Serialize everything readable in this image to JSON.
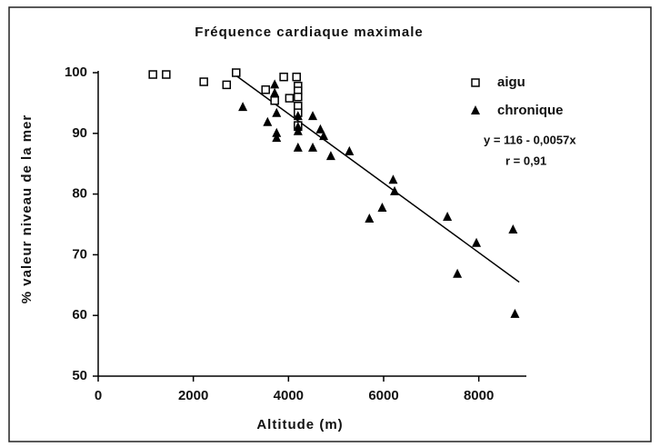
{
  "chart_data": {
    "type": "scatter",
    "title": "Fréquence cardiaque maximale",
    "x_label": "Altitude (m)",
    "y_label": "% valeur niveau de la mer",
    "xlim": [
      0,
      9000
    ],
    "ylim": [
      50,
      100
    ],
    "xticks": [
      0,
      2000,
      4000,
      6000,
      8000
    ],
    "yticks": [
      50,
      60,
      70,
      80,
      90,
      100
    ],
    "series": [
      {
        "name": "aigu",
        "marker": "square",
        "color": "#000000",
        "x": [
          1150,
          1430,
          2220,
          2700,
          2900,
          3520,
          3710,
          3900,
          4020,
          4170,
          4200,
          4200,
          4200,
          4200,
          4200,
          4200
        ],
        "values": [
          99.7,
          99.7,
          98.5,
          98,
          100,
          97.2,
          95.4,
          99.3,
          95.8,
          99.3,
          97.8,
          97,
          96,
          94.5,
          93.4,
          91.3
        ]
      },
      {
        "name": "chronique",
        "marker": "triangle",
        "color": "#000000",
        "x": [
          3040,
          3560,
          3710,
          3710,
          3750,
          3750,
          3750,
          4200,
          4200,
          4200,
          4200,
          4510,
          4510,
          4670,
          4740,
          4890,
          5280,
          5700,
          5970,
          6200,
          6230,
          7340,
          7550,
          7950,
          8720,
          8760
        ],
        "values": [
          94.3,
          91.8,
          98,
          96.6,
          93.3,
          90,
          89.2,
          92.8,
          91,
          90.3,
          87.6,
          92.8,
          87.6,
          90.6,
          89.5,
          86.2,
          87,
          75.9,
          77.7,
          82.3,
          80.4,
          76.2,
          66.8,
          71.9,
          74.1,
          60.2
        ]
      }
    ],
    "regression_line": {
      "x": [
        2850,
        8850
      ],
      "values": [
        99.8,
        65.5
      ]
    },
    "annotations": [
      "y = 116 - 0,0057x",
      "r = 0,91"
    ]
  }
}
